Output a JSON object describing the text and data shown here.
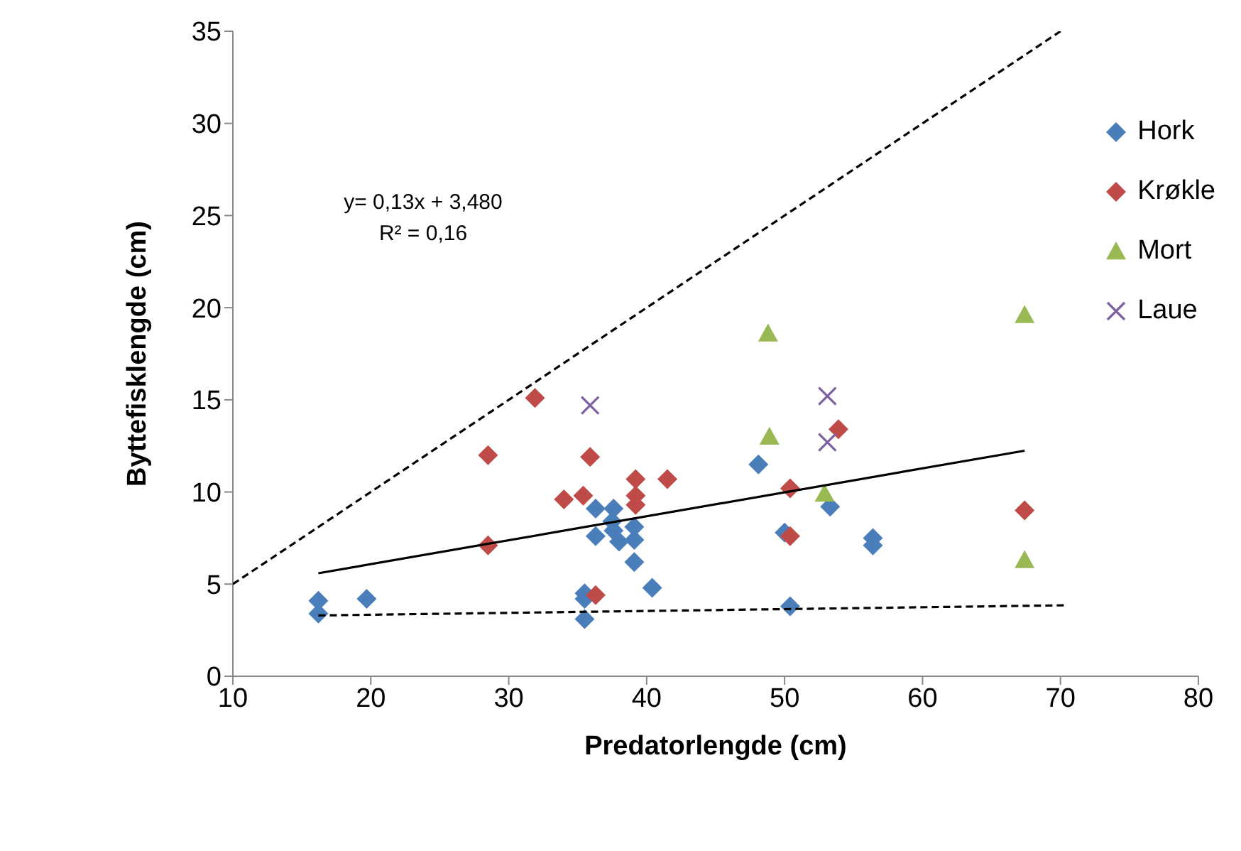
{
  "chart_data": {
    "type": "scatter",
    "xlabel": "Predatorlengde (cm)",
    "ylabel": "Byttefisklengde (cm)",
    "xlim": [
      10,
      80
    ],
    "xticks": [
      10,
      20,
      30,
      40,
      50,
      60,
      70,
      80
    ],
    "ylim": [
      0,
      35
    ],
    "yticks": [
      0,
      5,
      10,
      15,
      20,
      25,
      30,
      35
    ],
    "legend": "top right",
    "annotations": [
      "y= 0,13x + 3,480",
      "R² = 0,16"
    ],
    "series": [
      {
        "name": "Hork",
        "color": "#4a7ebb",
        "marker": "diamond",
        "x": [
          16.2,
          16.2,
          19.7,
          35.5,
          35.5,
          35.5,
          36.3,
          36.3,
          37.6,
          37.5,
          37.6,
          38,
          39.1,
          39.1,
          39.1,
          40.4,
          48.1,
          50,
          50.4,
          53.3,
          56.4,
          56.4
        ],
        "values": [
          4.1,
          3.4,
          4.2,
          4.5,
          4.2,
          3.1,
          9.1,
          7.6,
          9.1,
          8.4,
          7.9,
          7.3,
          8.1,
          7.4,
          6.2,
          4.8,
          11.5,
          7.8,
          3.8,
          9.2,
          7.5,
          7.1
        ]
      },
      {
        "name": "Krøkle",
        "color": "#be4b48",
        "marker": "diamond",
        "x": [
          31.9,
          28.5,
          35.9,
          34,
          35.4,
          28.5,
          36.3,
          39.2,
          39.2,
          39.2,
          41.5,
          50.4,
          50.4,
          53.9,
          67.4
        ],
        "values": [
          15.1,
          12,
          11.9,
          9.6,
          9.8,
          7.1,
          4.4,
          10.7,
          9.8,
          9.3,
          10.7,
          10.2,
          7.6,
          13.4,
          9
        ]
      },
      {
        "name": "Mort",
        "color": "#98b954",
        "marker": "triangle",
        "x": [
          48.8,
          48.9,
          52.9,
          67.4,
          67.4
        ],
        "values": [
          18.6,
          13,
          9.9,
          19.6,
          6.3
        ]
      },
      {
        "name": "Laue",
        "color": "#7d60a0",
        "marker": "cross",
        "x": [
          35.9,
          53.1,
          53.1
        ],
        "values": [
          14.7,
          15.2,
          12.7
        ]
      },
      {
        "type": "line",
        "color": "#000000",
        "line_style": "solid",
        "marker": "none",
        "x": [
          16.2,
          67.4
        ],
        "values": [
          5.59,
          12.24
        ]
      },
      {
        "type": "line",
        "color": "#000000",
        "line_style": "dashed",
        "marker": "none",
        "x": [
          10,
          70
        ],
        "values": [
          5,
          35
        ]
      },
      {
        "type": "line",
        "color": "#000000",
        "line_style": "dashed",
        "marker": "none",
        "x": [
          16.2,
          70.3
        ],
        "values": [
          3.3,
          3.85
        ]
      }
    ]
  }
}
